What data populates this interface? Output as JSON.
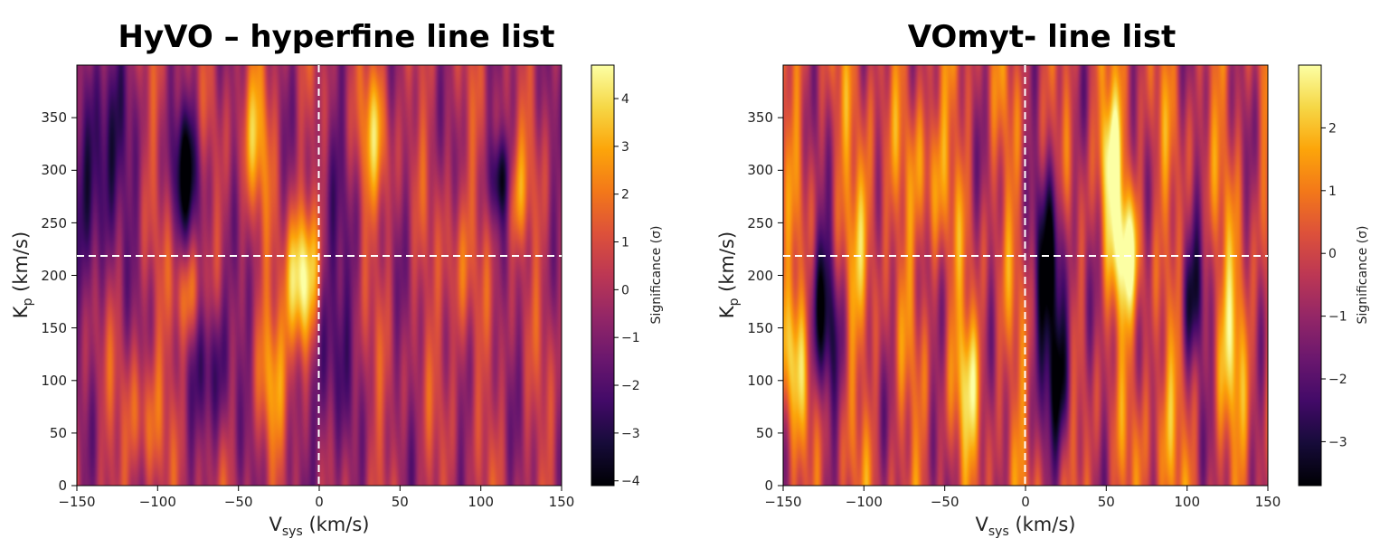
{
  "chart_data": [
    {
      "type": "heatmap",
      "title": "HyVO – hyperfine line list",
      "xlabel": "V",
      "xlabel_sub": "sys",
      "xlabel_unit": " (km/s)",
      "ylabel": "K",
      "ylabel_sub": "p",
      "ylabel_unit": " (km/s)",
      "xlim": [
        -150,
        150
      ],
      "ylim": [
        0,
        400
      ],
      "x_ticks": [
        -150,
        -100,
        -50,
        0,
        50,
        100,
        150
      ],
      "x_tick_labels": [
        "−150",
        "−100",
        "−50",
        "0",
        "50",
        "100",
        "150"
      ],
      "y_ticks": [
        0,
        50,
        100,
        150,
        200,
        250,
        300,
        350
      ],
      "y_tick_labels": [
        "0",
        "50",
        "100",
        "150",
        "200",
        "250",
        "300",
        "350"
      ],
      "colorbar": {
        "label": "Significance (σ)",
        "range": [
          -4.1,
          4.7
        ],
        "ticks": [
          -4,
          -3,
          -2,
          -1,
          0,
          1,
          2,
          3,
          4
        ],
        "tick_labels": [
          "−4",
          "−3",
          "−2",
          "−1",
          "0",
          "1",
          "2",
          "3",
          "4"
        ]
      },
      "crosshair": {
        "vsys": 0,
        "kp": 218
      },
      "features": [
        {
          "vsys": -12,
          "kp": 175,
          "sigma": 4.5,
          "wv": 7,
          "wk": 45
        },
        {
          "vsys": -10,
          "kp": 220,
          "sigma": 2.4,
          "wv": 8,
          "wk": 40
        },
        {
          "vsys": -82,
          "kp": 180,
          "sigma": 2.5,
          "wv": 6,
          "wk": 35
        },
        {
          "vsys": -82,
          "kp": 300,
          "sigma": -3.5,
          "wv": 7,
          "wk": 45
        },
        {
          "vsys": -135,
          "kp": 310,
          "sigma": -3.8,
          "wv": 10,
          "wk": 70
        },
        {
          "vsys": -65,
          "kp": 120,
          "sigma": -3.0,
          "wv": 8,
          "wk": 50
        },
        {
          "vsys": 112,
          "kp": 290,
          "sigma": -3.9,
          "wv": 5,
          "wk": 30
        },
        {
          "vsys": 120,
          "kp": 275,
          "sigma": 2.9,
          "wv": 6,
          "wk": 35
        },
        {
          "vsys": 5,
          "kp": 150,
          "sigma": -2.8,
          "wv": 8,
          "wk": 110
        },
        {
          "vsys": 35,
          "kp": 340,
          "sigma": 2.6,
          "wv": 7,
          "wk": 50
        },
        {
          "vsys": -40,
          "kp": 340,
          "sigma": 2.6,
          "wv": 7,
          "wk": 50
        },
        {
          "vsys": -110,
          "kp": 60,
          "sigma": 2.2,
          "wv": 7,
          "wk": 45
        },
        {
          "vsys": 85,
          "kp": 200,
          "sigma": 2.0,
          "wv": 6,
          "wk": 60
        },
        {
          "vsys": -30,
          "kp": 100,
          "sigma": 2.0,
          "wv": 6,
          "wk": 50
        }
      ]
    },
    {
      "type": "heatmap",
      "title": "VOmyt- line list",
      "xlabel": "V",
      "xlabel_sub": "sys",
      "xlabel_unit": " (km/s)",
      "ylabel": "K",
      "ylabel_sub": "p",
      "ylabel_unit": " (km/s)",
      "xlim": [
        -150,
        150
      ],
      "ylim": [
        0,
        400
      ],
      "x_ticks": [
        -150,
        -100,
        -50,
        0,
        50,
        100,
        150
      ],
      "x_tick_labels": [
        "−150",
        "−100",
        "−50",
        "0",
        "50",
        "100",
        "150"
      ],
      "y_ticks": [
        0,
        50,
        100,
        150,
        200,
        250,
        300,
        350
      ],
      "y_tick_labels": [
        "0",
        "50",
        "100",
        "150",
        "200",
        "250",
        "300",
        "350"
      ],
      "colorbar": {
        "label": "Significance (σ)",
        "range": [
          -3.7,
          3.0
        ],
        "ticks": [
          -3,
          -2,
          -1,
          0,
          1,
          2
        ],
        "tick_labels": [
          "−3",
          "−2",
          "−1",
          "0",
          "1",
          "2"
        ]
      },
      "crosshair": {
        "vsys": 0,
        "kp": 218
      },
      "features": [
        {
          "vsys": 62,
          "kp": 225,
          "sigma": 2.9,
          "wv": 7,
          "wk": 45
        },
        {
          "vsys": 52,
          "kp": 320,
          "sigma": 2.7,
          "wv": 6,
          "wk": 40
        },
        {
          "vsys": 16,
          "kp": 205,
          "sigma": -3.6,
          "wv": 7,
          "wk": 75
        },
        {
          "vsys": 22,
          "kp": 100,
          "sigma": -3.0,
          "wv": 6,
          "wk": 45
        },
        {
          "vsys": -125,
          "kp": 165,
          "sigma": -2.6,
          "wv": 8,
          "wk": 60
        },
        {
          "vsys": 102,
          "kp": 170,
          "sigma": -2.6,
          "wv": 6,
          "wk": 45
        },
        {
          "vsys": -148,
          "kp": 130,
          "sigma": 2.4,
          "wv": 8,
          "wk": 50
        },
        {
          "vsys": -35,
          "kp": 110,
          "sigma": 2.0,
          "wv": 6,
          "wk": 45
        },
        {
          "vsys": -60,
          "kp": 300,
          "sigma": 1.8,
          "wv": 7,
          "wk": 60
        },
        {
          "vsys": 130,
          "kp": 150,
          "sigma": 1.8,
          "wv": 7,
          "wk": 60
        },
        {
          "vsys": -100,
          "kp": 260,
          "sigma": 1.6,
          "wv": 7,
          "wk": 60
        },
        {
          "vsys": 85,
          "kp": 60,
          "sigma": 1.5,
          "wv": 7,
          "wk": 50
        }
      ]
    }
  ]
}
